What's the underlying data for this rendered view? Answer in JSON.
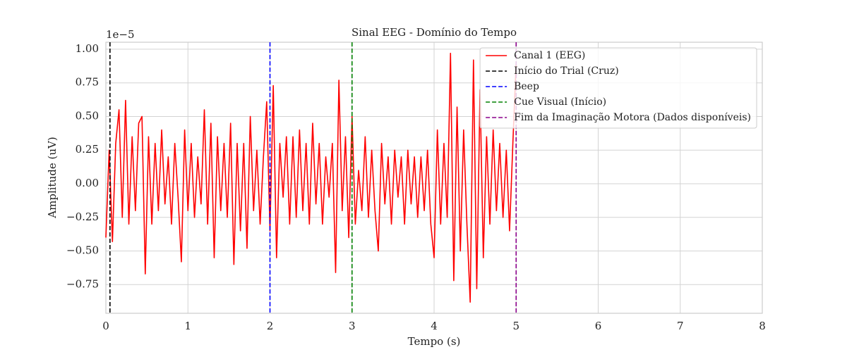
{
  "chart_data": {
    "type": "line",
    "title": "Sinal EEG - Domínio do Tempo",
    "x_label": "Tempo (s)",
    "y_label": "Amplitude (uV)",
    "offset_label": "1e−5",
    "x": [
      0,
      0.04,
      0.08,
      0.12,
      0.16,
      0.2,
      0.24,
      0.28,
      0.32,
      0.36,
      0.4,
      0.44,
      0.48,
      0.52,
      0.56,
      0.6,
      0.64,
      0.68,
      0.72,
      0.76,
      0.8,
      0.84,
      0.88,
      0.92,
      0.96,
      1.0,
      1.04,
      1.08,
      1.12,
      1.16,
      1.2,
      1.24,
      1.28,
      1.32,
      1.36,
      1.4,
      1.44,
      1.48,
      1.52,
      1.56,
      1.6,
      1.64,
      1.68,
      1.72,
      1.76,
      1.8,
      1.84,
      1.88,
      1.92,
      1.96,
      2.0,
      2.04,
      2.08,
      2.12,
      2.16,
      2.2,
      2.24,
      2.28,
      2.32,
      2.36,
      2.4,
      2.44,
      2.48,
      2.52,
      2.56,
      2.6,
      2.64,
      2.68,
      2.72,
      2.76,
      2.8,
      2.84,
      2.88,
      2.92,
      2.96,
      3.0,
      3.04,
      3.08,
      3.12,
      3.16,
      3.2,
      3.24,
      3.28,
      3.32,
      3.36,
      3.4,
      3.44,
      3.48,
      3.52,
      3.56,
      3.6,
      3.64,
      3.68,
      3.72,
      3.76,
      3.8,
      3.84,
      3.88,
      3.92,
      3.96,
      4.0,
      4.04,
      4.08,
      4.12,
      4.16,
      4.2,
      4.24,
      4.28,
      4.32,
      4.36,
      4.4,
      4.44,
      4.48,
      4.52,
      4.56,
      4.6,
      4.64,
      4.68,
      4.72,
      4.76,
      4.8,
      4.84,
      4.88,
      4.92,
      4.96,
      5.0
    ],
    "series": [
      {
        "name": "Canal 1 (EEG)",
        "color": "#ff0000",
        "values": [
          -0.4,
          0.25,
          -0.43,
          0.3,
          0.55,
          -0.25,
          0.62,
          -0.3,
          0.35,
          -0.2,
          0.45,
          0.5,
          -0.67,
          0.35,
          -0.3,
          0.3,
          -0.2,
          0.4,
          -0.15,
          0.2,
          -0.3,
          0.3,
          -0.1,
          -0.58,
          0.4,
          -0.2,
          0.3,
          -0.25,
          0.2,
          -0.15,
          0.55,
          -0.3,
          0.45,
          -0.55,
          0.35,
          -0.2,
          0.3,
          -0.25,
          0.45,
          -0.6,
          0.3,
          -0.35,
          0.3,
          -0.48,
          0.5,
          -0.2,
          0.25,
          -0.3,
          0.2,
          0.61,
          -0.35,
          0.73,
          -0.55,
          0.3,
          -0.1,
          0.35,
          -0.3,
          0.35,
          -0.25,
          0.4,
          -0.2,
          0.3,
          -0.3,
          0.45,
          -0.15,
          0.3,
          -0.3,
          0.2,
          -0.1,
          0.3,
          -0.66,
          0.77,
          -0.2,
          0.35,
          -0.4,
          0.5,
          -0.3,
          0.1,
          -0.2,
          0.35,
          -0.25,
          0.25,
          -0.2,
          -0.5,
          0.3,
          -0.15,
          0.2,
          -0.3,
          0.25,
          -0.1,
          0.2,
          -0.3,
          0.25,
          -0.15,
          0.2,
          -0.25,
          0.2,
          -0.2,
          0.25,
          -0.3,
          -0.55,
          0.4,
          -0.3,
          0.3,
          -0.25,
          0.97,
          -0.72,
          0.57,
          -0.5,
          0.4,
          -0.3,
          -0.88,
          0.92,
          -0.78,
          0.7,
          -0.55,
          0.35,
          -0.3,
          0.4,
          -0.2,
          0.3,
          -0.25,
          0.25,
          -0.35,
          0.3,
          0.9
        ]
      }
    ],
    "vlines": [
      {
        "name": "Início do Trial (Cruz)",
        "x": 0.05,
        "color": "#000000"
      },
      {
        "name": "Beep",
        "x": 2,
        "color": "#0000ff"
      },
      {
        "name": "Cue Visual (Início)",
        "x": 3,
        "color": "#008000"
      },
      {
        "name": "Fim da Imaginação Motora (Dados disponíveis)",
        "x": 5,
        "color": "#8b008b"
      }
    ],
    "xlim": [
      0,
      8
    ],
    "xticks": [
      0,
      1,
      2,
      3,
      4,
      5,
      6,
      7,
      8
    ],
    "ylim": [
      -0.963,
      1.052
    ],
    "yticks": [
      {
        "value": -0.75,
        "label": "−0.75"
      },
      {
        "value": -0.5,
        "label": "−0.50"
      },
      {
        "value": -0.25,
        "label": "−0.25"
      },
      {
        "value": 0,
        "label": "0.00"
      },
      0.25,
      {
        "value": 0.5,
        "label": "0.50"
      },
      0.75,
      {
        "value": 1,
        "label": "1.00"
      }
    ],
    "grid": true,
    "legend": "upper right"
  }
}
